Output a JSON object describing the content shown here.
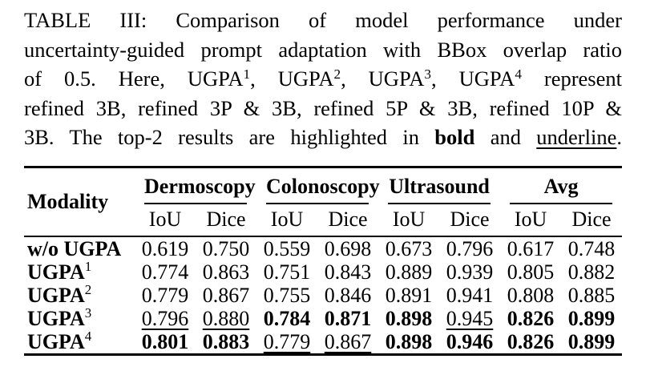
{
  "page": {
    "background_color": "#ffffff",
    "text_color": "#000000"
  },
  "caption": {
    "line1": "TABLE III: Comparison of model performance under",
    "line2": "uncertainty-guided prompt adaptation with BBox overlap ratio",
    "line3": {
      "t1": "of 0.5. Here, UGPA",
      "p1": "1",
      "t2": ", UGPA",
      "p2": "2",
      "t3": ", UGPA",
      "p3": "3",
      "t4": ", UGPA",
      "p4": "4",
      "t5": " represent"
    },
    "line4": "refined 3B, refined 3P & 3B, refined 5P & 3B, refined 10P &",
    "line5": {
      "t1": "3B. The top-2 results are highlighted in ",
      "bold_word": "bold",
      "t2": " and ",
      "underline_word": "underline",
      "t3": "."
    }
  },
  "table": {
    "corner_header": "Modality",
    "groups": [
      {
        "label": "Dermoscopy"
      },
      {
        "label": "Colonoscopy"
      },
      {
        "label": "Ultrasound"
      },
      {
        "label": "Avg"
      }
    ],
    "subheaders": [
      "IoU",
      "Dice",
      "IoU",
      "Dice",
      "IoU",
      "Dice",
      "IoU",
      "Dice"
    ],
    "rows": [
      {
        "label": "w/o UGPA",
        "sup": "",
        "values": [
          {
            "v": "0.619",
            "style": "plain"
          },
          {
            "v": "0.750",
            "style": "plain"
          },
          {
            "v": "0.559",
            "style": "plain"
          },
          {
            "v": "0.698",
            "style": "plain"
          },
          {
            "v": "0.673",
            "style": "plain"
          },
          {
            "v": "0.796",
            "style": "plain"
          },
          {
            "v": "0.617",
            "style": "plain"
          },
          {
            "v": "0.748",
            "style": "plain"
          }
        ]
      },
      {
        "label": "UGPA",
        "sup": "1",
        "values": [
          {
            "v": "0.774",
            "style": "plain"
          },
          {
            "v": "0.863",
            "style": "plain"
          },
          {
            "v": "0.751",
            "style": "plain"
          },
          {
            "v": "0.843",
            "style": "plain"
          },
          {
            "v": "0.889",
            "style": "plain"
          },
          {
            "v": "0.939",
            "style": "plain"
          },
          {
            "v": "0.805",
            "style": "plain"
          },
          {
            "v": "0.882",
            "style": "plain"
          }
        ]
      },
      {
        "label": "UGPA",
        "sup": "2",
        "values": [
          {
            "v": "0.779",
            "style": "plain"
          },
          {
            "v": "0.867",
            "style": "plain"
          },
          {
            "v": "0.755",
            "style": "plain"
          },
          {
            "v": "0.846",
            "style": "plain"
          },
          {
            "v": "0.891",
            "style": "plain"
          },
          {
            "v": "0.941",
            "style": "plain"
          },
          {
            "v": "0.808",
            "style": "plain"
          },
          {
            "v": "0.885",
            "style": "plain"
          }
        ]
      },
      {
        "label": "UGPA",
        "sup": "3",
        "values": [
          {
            "v": "0.796",
            "style": "underline"
          },
          {
            "v": "0.880",
            "style": "underline"
          },
          {
            "v": "0.784",
            "style": "bold"
          },
          {
            "v": "0.871",
            "style": "bold"
          },
          {
            "v": "0.898",
            "style": "bold"
          },
          {
            "v": "0.945",
            "style": "underline"
          },
          {
            "v": "0.826",
            "style": "bold"
          },
          {
            "v": "0.899",
            "style": "bold"
          }
        ]
      },
      {
        "label": "UGPA",
        "sup": "4",
        "values": [
          {
            "v": "0.801",
            "style": "bold"
          },
          {
            "v": "0.883",
            "style": "bold"
          },
          {
            "v": "0.779",
            "style": "underline"
          },
          {
            "v": "0.867",
            "style": "underline"
          },
          {
            "v": "0.898",
            "style": "bold"
          },
          {
            "v": "0.946",
            "style": "bold"
          },
          {
            "v": "0.826",
            "style": "bold"
          },
          {
            "v": "0.899",
            "style": "bold"
          }
        ]
      }
    ]
  }
}
